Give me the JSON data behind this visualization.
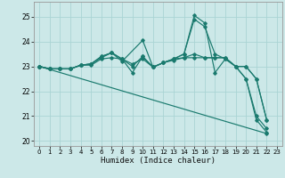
{
  "xlabel": "Humidex (Indice chaleur)",
  "bg_color": "#cce8e8",
  "grid_color": "#aad4d4",
  "line_color": "#1a7a6e",
  "xlim": [
    -0.5,
    23.5
  ],
  "ylim": [
    19.8,
    25.6
  ],
  "yticks": [
    20,
    21,
    22,
    23,
    24,
    25
  ],
  "xticks": [
    0,
    1,
    2,
    3,
    4,
    5,
    6,
    7,
    8,
    9,
    10,
    11,
    12,
    13,
    14,
    15,
    16,
    17,
    18,
    19,
    20,
    21,
    22,
    23
  ],
  "series": [
    {
      "x": [
        0,
        1,
        2,
        3,
        4,
        5,
        6,
        7,
        8,
        9,
        10,
        11,
        12,
        13,
        14,
        15,
        16,
        17,
        18,
        19,
        20,
        21,
        22
      ],
      "y": [
        23.0,
        22.9,
        22.9,
        22.9,
        23.05,
        23.1,
        23.4,
        23.55,
        23.3,
        22.75,
        23.4,
        22.97,
        23.15,
        23.3,
        23.5,
        25.05,
        24.75,
        22.75,
        23.3,
        23.0,
        22.5,
        20.85,
        20.35
      ]
    },
    {
      "x": [
        0,
        1,
        2,
        3,
        4,
        5,
        6,
        7,
        8,
        9,
        10,
        11,
        12,
        13,
        14,
        15,
        16,
        17,
        18,
        19,
        20,
        21,
        22
      ],
      "y": [
        23.0,
        22.9,
        22.9,
        22.9,
        23.05,
        23.1,
        23.35,
        23.55,
        23.3,
        23.0,
        23.4,
        22.97,
        23.15,
        23.3,
        23.5,
        24.9,
        24.6,
        23.5,
        23.3,
        23.0,
        22.5,
        21.0,
        20.5
      ]
    },
    {
      "x": [
        0,
        1,
        2,
        3,
        4,
        5,
        6,
        7,
        8,
        10,
        11,
        12,
        13,
        14,
        15,
        16,
        17,
        18,
        19,
        20,
        21,
        22
      ],
      "y": [
        23.0,
        22.9,
        22.9,
        22.9,
        23.05,
        23.1,
        23.4,
        23.55,
        23.2,
        24.05,
        22.97,
        23.15,
        23.3,
        23.35,
        23.35,
        23.35,
        23.35,
        23.35,
        23.0,
        23.0,
        22.5,
        20.85
      ]
    },
    {
      "x": [
        0,
        1,
        2,
        3,
        4,
        5,
        6,
        7,
        8,
        9,
        10,
        11,
        12,
        13,
        14,
        15,
        16,
        17,
        18,
        19,
        20,
        21,
        22
      ],
      "y": [
        23.0,
        22.9,
        22.9,
        22.9,
        23.05,
        23.05,
        23.3,
        23.35,
        23.3,
        23.1,
        23.3,
        22.97,
        23.15,
        23.25,
        23.35,
        23.5,
        23.35,
        23.35,
        23.35,
        23.0,
        23.0,
        22.5,
        20.85
      ]
    },
    {
      "x": [
        0,
        22
      ],
      "y": [
        23.0,
        20.3
      ]
    }
  ]
}
